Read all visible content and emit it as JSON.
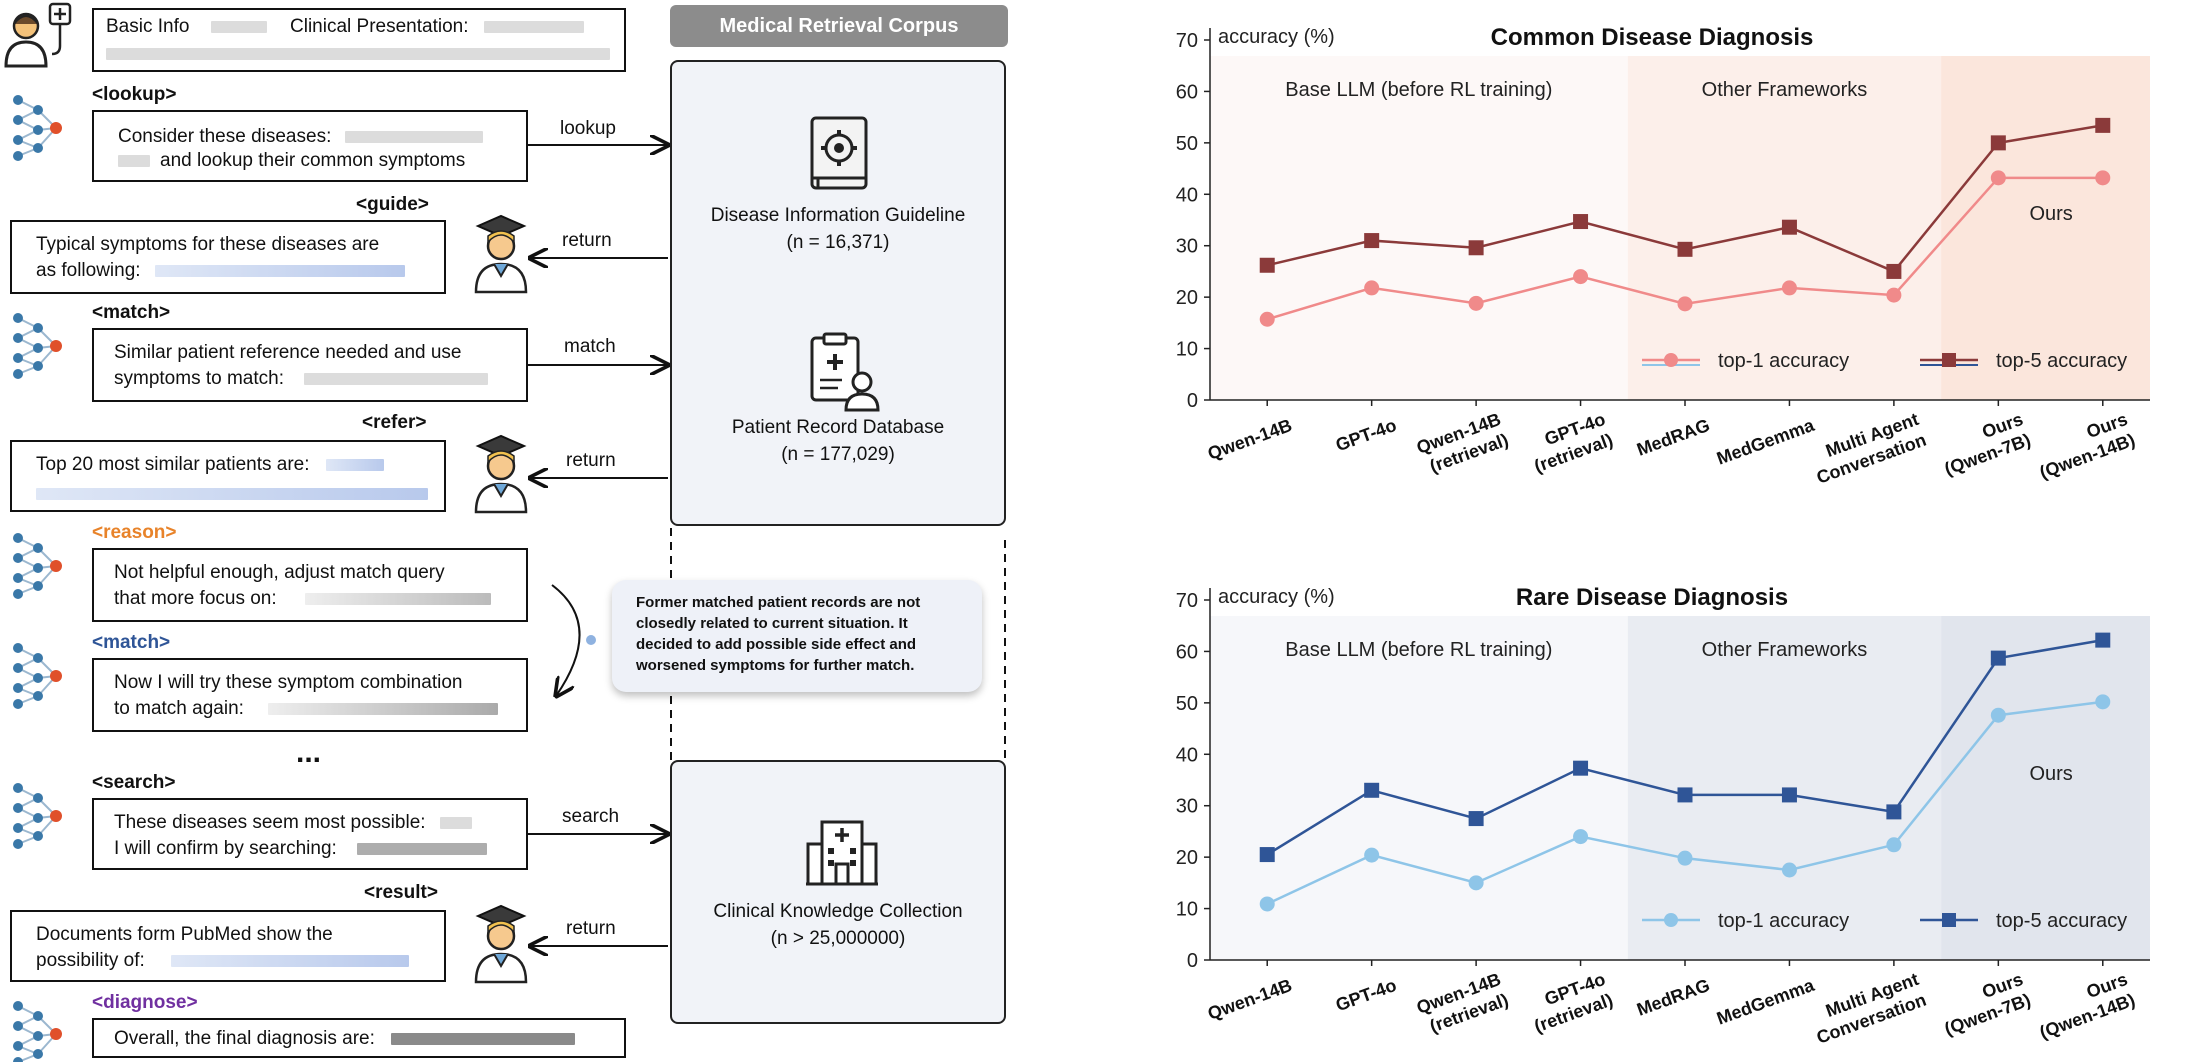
{
  "left": {
    "basic_info": "Basic Info",
    "clinical_presentation": "Clinical Presentation:",
    "corpus_title": "Medical Retrieval Corpus",
    "steps": {
      "lookup_tag": "<lookup>",
      "lookup_line1": "Consider these diseases:",
      "lookup_line2": "and lookup their common symptoms",
      "lookup_arrow": "lookup",
      "guide_tag": "<guide>",
      "guide_line1": "Typical symptoms for these diseases are",
      "guide_line2": "as following:",
      "guide_arrow": "return",
      "match_tag": "<match>",
      "match_line1": "Similar patient reference needed and use",
      "match_line2": "symptoms to match:",
      "match_arrow": "match",
      "refer_tag": "<refer>",
      "refer_line1": "Top 20 most similar patients are:",
      "refer_arrow": "return",
      "reason_tag": "<reason>",
      "reason_line1": "Not helpful enough, adjust match query",
      "reason_line2": "that more focus on:",
      "match2_tag": "<match>",
      "match2_line1": "Now I will try these symptom combination",
      "match2_line2": "to match again:",
      "ellipsis": "...",
      "search_tag": "<search>",
      "search_line1": "These diseases seem most possible:",
      "search_line2": "I will confirm by searching:",
      "search_arrow": "search",
      "result_tag": "<result>",
      "result_line1": "Documents form PubMed show the",
      "result_line2": "possibility of:",
      "result_arrow": "return",
      "diagnose_tag": "<diagnose>",
      "diagnose_line1": "Overall, the final diagnosis are:"
    },
    "corpus": {
      "guideline_name": "Disease Information Guideline",
      "guideline_n": "(n = 16,371)",
      "records_name": "Patient Record Database",
      "records_n": "(n = 177,029)",
      "knowledge_name": "Clinical Knowledge Collection",
      "knowledge_n": "(n > 25,000000)"
    },
    "bubble": "Former matched patient records are not closedly related to current situation. It decided to add possible side effect and worsened symptoms for further match.",
    "colors": {
      "reason_tag": "#e8832a",
      "match2_tag": "#2f5597",
      "diagnose_tag": "#7030a0",
      "node_blue": "#3a78a8",
      "node_red": "#e0502b"
    }
  },
  "chart_data": [
    {
      "type": "line",
      "title": "Common Disease Diagnosis",
      "ylabel": "accuracy (%)",
      "ylim": [
        0,
        70
      ],
      "yticks": [
        0,
        10,
        20,
        30,
        40,
        50,
        60,
        70
      ],
      "categories": [
        "Qwen-14B",
        "GPT-4o",
        "Qwen-14B (retrieval)",
        "GPT-4o (retrieval)",
        "MedRAG",
        "MedGemma",
        "Multi Agent Conversation",
        "Ours (Qwen-7B)",
        "Ours (Qwen-14B)"
      ],
      "category_lines": [
        [
          "Qwen-14B"
        ],
        [
          "GPT-4o"
        ],
        [
          "Qwen-14B",
          "(retrieval)"
        ],
        [
          "GPT-4o",
          "(retrieval)"
        ],
        [
          "MedRAG"
        ],
        [
          "MedGemma"
        ],
        [
          "Multi Agent",
          "Conversation"
        ],
        [
          "Ours",
          "(Qwen-7B)"
        ],
        [
          "Ours",
          "(Qwen-14B)"
        ]
      ],
      "regions": [
        {
          "label": "Base LLM (before RL training)",
          "from": 0,
          "to": 4,
          "color": "#fdf8f7"
        },
        {
          "label": "Other Frameworks",
          "from": 4,
          "to": 7,
          "color": "#fcefea"
        },
        {
          "label": "Ours",
          "from": 7,
          "to": 9,
          "color": "#fbe6dc"
        }
      ],
      "series": [
        {
          "name": "top-1 accuracy",
          "values": [
            15.7,
            21.8,
            18.8,
            24.0,
            18.7,
            21.8,
            20.4,
            43.2,
            43.2
          ],
          "color": "#f08a8a",
          "marker": "circle",
          "legend_line_color": "#8ec5e8"
        },
        {
          "name": "top-5 accuracy",
          "values": [
            26.2,
            31.0,
            29.6,
            34.7,
            29.3,
            33.6,
            25.0,
            50.0,
            53.4
          ],
          "color": "#8b3a3a",
          "marker": "square",
          "legend_line_color": "#2f5597"
        }
      ]
    },
    {
      "type": "line",
      "title": "Rare Disease Diagnosis",
      "ylabel": "accuracy (%)",
      "ylim": [
        0,
        70
      ],
      "yticks": [
        0,
        10,
        20,
        30,
        40,
        50,
        60,
        70
      ],
      "categories": [
        "Qwen-14B",
        "GPT-4o",
        "Qwen-14B (retrieval)",
        "GPT-4o (retrieval)",
        "MedRAG",
        "MedGemma",
        "Multi Agent Conversation",
        "Ours (Qwen-7B)",
        "Ours (Qwen-14B)"
      ],
      "category_lines": [
        [
          "Qwen-14B"
        ],
        [
          "GPT-4o"
        ],
        [
          "Qwen-14B",
          "(retrieval)"
        ],
        [
          "GPT-4o",
          "(retrieval)"
        ],
        [
          "MedRAG"
        ],
        [
          "MedGemma"
        ],
        [
          "Multi Agent",
          "Conversation"
        ],
        [
          "Ours",
          "(Qwen-7B)"
        ],
        [
          "Ours",
          "(Qwen-14B)"
        ]
      ],
      "regions": [
        {
          "label": "Base LLM (before RL training)",
          "from": 0,
          "to": 4,
          "color": "#f6f7fa"
        },
        {
          "label": "Other Frameworks",
          "from": 4,
          "to": 7,
          "color": "#e9ecf2"
        },
        {
          "label": "Ours",
          "from": 7,
          "to": 9,
          "color": "#e1e5ed"
        }
      ],
      "series": [
        {
          "name": "top-1 accuracy",
          "values": [
            10.9,
            20.4,
            15.0,
            24.0,
            19.8,
            17.5,
            22.4,
            47.6,
            50.2
          ],
          "color": "#8ec5e8",
          "marker": "circle"
        },
        {
          "name": "top-5 accuracy",
          "values": [
            20.5,
            33.0,
            27.5,
            37.3,
            32.1,
            32.1,
            28.8,
            58.7,
            62.2
          ],
          "color": "#2f5597",
          "marker": "square"
        }
      ]
    }
  ]
}
